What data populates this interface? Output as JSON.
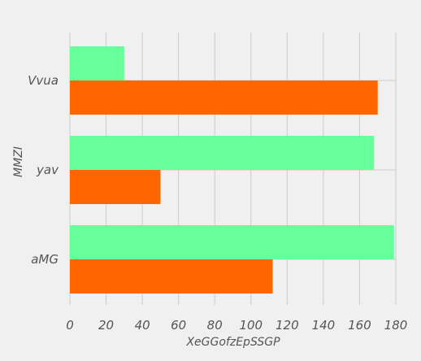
{
  "chart_data": {
    "type": "bar",
    "orientation": "horizontal",
    "categories": [
      "Vvua",
      "yav",
      "aMG"
    ],
    "series": [
      {
        "values": [
          30,
          168,
          179
        ],
        "color": "#66ff99"
      },
      {
        "values": [
          170,
          50,
          112
        ],
        "color": "#ff6600"
      }
    ],
    "xlabel": "XeGGofzEpSSGP",
    "ylabel": "MMZI",
    "xlim": [
      0,
      180
    ],
    "xticks": [
      "0",
      "20",
      "40",
      "60",
      "80",
      "100",
      "120",
      "140",
      "160",
      "180"
    ],
    "grid": true,
    "legend": "none"
  },
  "colors": {
    "background": "#f0f0f0",
    "grid": "#cbcbcb",
    "text": "#555555"
  }
}
